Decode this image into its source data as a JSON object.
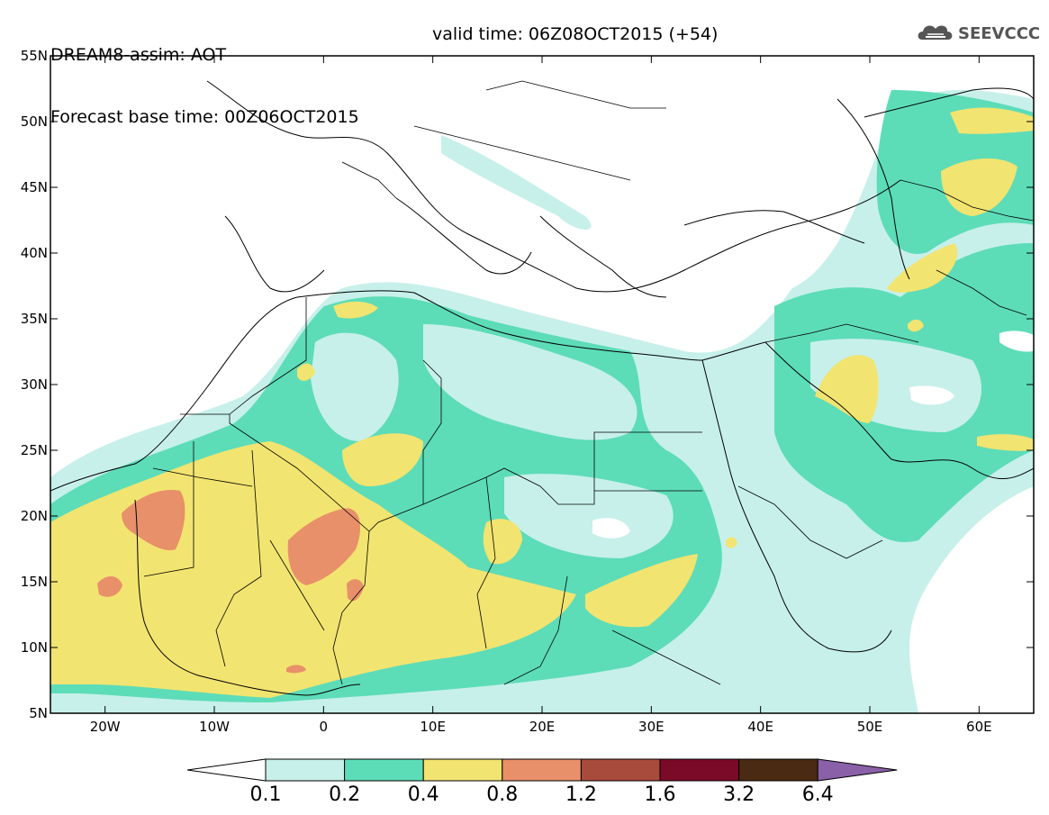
{
  "title": {
    "line1": "DREAM8-assim: AOT",
    "base_time": "Forecast base time: 00Z06OCT2015",
    "valid_time": "valid time: 06Z08OCT2015 (+54)"
  },
  "logo": {
    "text": "SEEVCCC",
    "icon": "cloud-icon"
  },
  "axes": {
    "lat_labels": [
      "55N",
      "50N",
      "45N",
      "40N",
      "35N",
      "30N",
      "25N",
      "20N",
      "15N",
      "10N",
      "5N"
    ],
    "lon_labels": [
      "20W",
      "10W",
      "0",
      "10E",
      "20E",
      "30E",
      "40E",
      "50E",
      "60E"
    ],
    "lat_range": [
      5,
      55
    ],
    "lon_range": [
      -25,
      65
    ]
  },
  "colorbar": {
    "labels": [
      "0.1",
      "0.2",
      "0.4",
      "0.8",
      "1.2",
      "1.6",
      "3.2",
      "6.4"
    ],
    "colors": [
      "#c7f0ea",
      "#5ddcb8",
      "#f2e470",
      "#e8906a",
      "#a84a3c",
      "#7a0a28",
      "#4a2a12",
      "#8a60a8"
    ]
  },
  "chart_data": {
    "type": "heatmap",
    "title": "DREAM8-assim: AOT",
    "variable": "AOT",
    "levels": [
      0.1,
      0.2,
      0.4,
      0.8,
      1.2,
      1.6,
      3.2,
      6.4
    ],
    "xlim": [
      -25,
      65
    ],
    "ylim": [
      5,
      55
    ]
  }
}
